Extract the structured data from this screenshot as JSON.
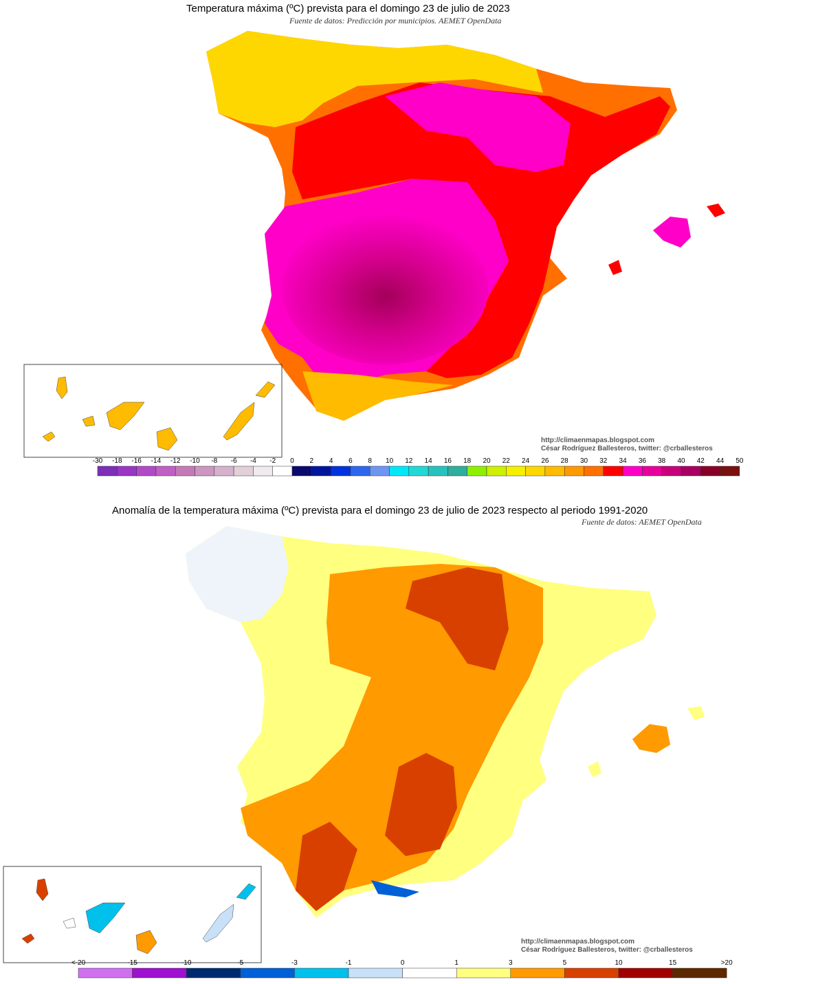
{
  "map1": {
    "title": "Temperatura máxima (ºC) prevista para el domingo 23 de julio de 2023",
    "source": "Fuente de datos: Predicción por municipios. AEMET OpenData",
    "credit_url": "http://climaenmapas.blogspot.com",
    "credit_author": "César Rodríguez Ballesteros, twitter: @crballesteros",
    "legend": {
      "labels": [
        "-30",
        "-18",
        "-16",
        "-14",
        "-12",
        "-10",
        "-8",
        "-6",
        "-4",
        "-2",
        "0",
        "2",
        "4",
        "6",
        "8",
        "10",
        "12",
        "14",
        "16",
        "18",
        "20",
        "22",
        "24",
        "26",
        "28",
        "30",
        "32",
        "34",
        "36",
        "38",
        "40",
        "42",
        "44",
        "50"
      ],
      "colors": [
        "#7d2fb7",
        "#9a36c4",
        "#b24ac8",
        "#c060c4",
        "#c47ab8",
        "#cc96c0",
        "#d4b2cc",
        "#e2cfd8",
        "#eeeaee",
        "#ffffff",
        "#0a0a6e",
        "#00159e",
        "#0033dd",
        "#2f66ee",
        "#6c96f2",
        "#00e8f8",
        "#22d8d6",
        "#27c2bc",
        "#2eae9e",
        "#8ef000",
        "#ccf000",
        "#f4f000",
        "#ffd700",
        "#ffbb00",
        "#ff9900",
        "#ff7000",
        "#ff0000",
        "#ff00c8",
        "#e8009c",
        "#c8007c",
        "#a80060",
        "#880028",
        "#7a1010"
      ]
    }
  },
  "map2": {
    "title": "Anomalía de la temperatura máxima (ºC) prevista para el domingo 23 de julio de 2023 respecto al periodo 1991-2020",
    "source": "Fuente de datos: AEMET OpenData",
    "credit_url": "http://climaenmapas.blogspot.com",
    "credit_author": "César Rodríguez Ballesteros, twitter: @crballesteros",
    "legend": {
      "labels": [
        "<-20",
        "-15",
        "-10",
        "-5",
        "-3",
        "-1",
        "0",
        "1",
        "3",
        "5",
        "10",
        "15",
        ">20"
      ],
      "colors": [
        "#d070f0",
        "#a010d0",
        "#002a70",
        "#0060d8",
        "#00c0ec",
        "#c8e0f8",
        "#ffffff",
        "#ffff80",
        "#ff9a00",
        "#d84000",
        "#a00000",
        "#5c2800"
      ]
    }
  }
}
